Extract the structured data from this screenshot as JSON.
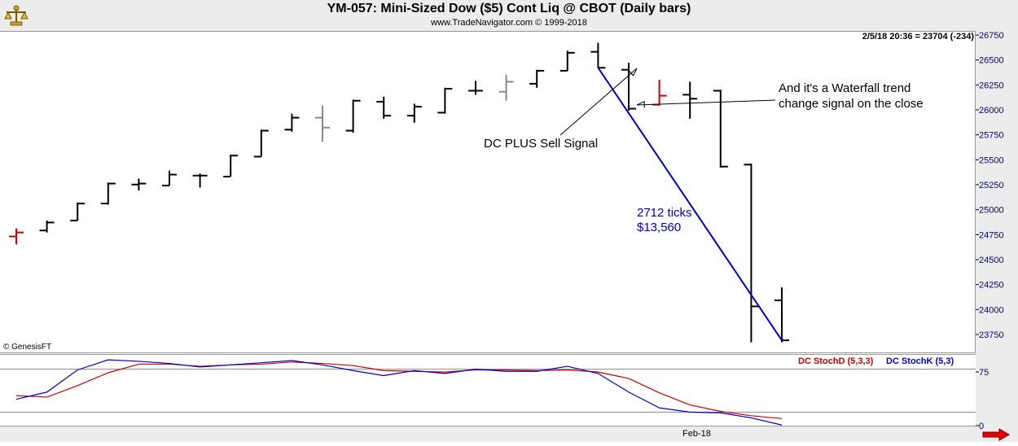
{
  "header": {
    "title": "YM-057:  Mini-Sized Dow ($5) Cont Liq @ CBOT  (Daily bars)",
    "subtitle": "www.TradeNavigator.com © 1999-2018"
  },
  "quote": "2/5/18 20:36 = 23704 (-234)",
  "copyright": "© GenesisFT",
  "annotations": {
    "sell_signal": "DC PLUS Sell Signal",
    "waterfall_1": "And it's a Waterfall trend",
    "waterfall_2": "change signal on the close",
    "ticks_1": "2712 ticks",
    "ticks_2": "$13,560"
  },
  "stoch_legend": {
    "d_label": "DC StochD (5,3,3)",
    "k_label": "DC StochK (5,3)",
    "d_color": "#cc0000",
    "k_color": "#0000cc"
  },
  "date_label": "Feb-18",
  "chart_data": [
    {
      "type": "bar",
      "subtype": "ohlc",
      "title": "YM-057:  Mini-Sized Dow ($5) Cont Liq @ CBOT  (Daily bars)",
      "ylim": [
        23600,
        26800
      ],
      "yticks": [
        23750,
        24000,
        24250,
        24500,
        24750,
        25000,
        25250,
        25500,
        25750,
        26000,
        26250,
        26500,
        26750
      ],
      "bars": [
        {
          "o": 24740,
          "h": 24820,
          "l": 24660,
          "c": 24780,
          "color": "#cc0000"
        },
        {
          "o": 24800,
          "h": 24900,
          "l": 24780,
          "c": 24880,
          "color": "#000000"
        },
        {
          "o": 24900,
          "h": 25080,
          "l": 24900,
          "c": 25070,
          "color": "#000000"
        },
        {
          "o": 25070,
          "h": 25280,
          "l": 25060,
          "c": 25270,
          "color": "#000000"
        },
        {
          "o": 25260,
          "h": 25320,
          "l": 25200,
          "c": 25270,
          "color": "#000000"
        },
        {
          "o": 25250,
          "h": 25400,
          "l": 25250,
          "c": 25360,
          "color": "#000000"
        },
        {
          "o": 25350,
          "h": 25370,
          "l": 25230,
          "c": 25350,
          "color": "#000000"
        },
        {
          "o": 25340,
          "h": 25560,
          "l": 25340,
          "c": 25550,
          "color": "#000000"
        },
        {
          "o": 25540,
          "h": 25810,
          "l": 25540,
          "c": 25800,
          "color": "#000000"
        },
        {
          "o": 25810,
          "h": 25970,
          "l": 25790,
          "c": 25930,
          "color": "#000000"
        },
        {
          "o": 25930,
          "h": 26050,
          "l": 25690,
          "c": 25830,
          "color": "#888888"
        },
        {
          "o": 25800,
          "h": 26110,
          "l": 25780,
          "c": 26100,
          "color": "#000000"
        },
        {
          "o": 26090,
          "h": 26140,
          "l": 25920,
          "c": 25950,
          "color": "#000000"
        },
        {
          "o": 25950,
          "h": 26070,
          "l": 25880,
          "c": 26040,
          "color": "#000000"
        },
        {
          "o": 25980,
          "h": 26230,
          "l": 25970,
          "c": 26220,
          "color": "#000000"
        },
        {
          "o": 26200,
          "h": 26300,
          "l": 26160,
          "c": 26200,
          "color": "#000000"
        },
        {
          "o": 26190,
          "h": 26360,
          "l": 26100,
          "c": 26290,
          "color": "#888888"
        },
        {
          "o": 26270,
          "h": 26410,
          "l": 26230,
          "c": 26400,
          "color": "#000000"
        },
        {
          "o": 26400,
          "h": 26600,
          "l": 26400,
          "c": 26580,
          "color": "#000000"
        },
        {
          "o": 26590,
          "h": 26680,
          "l": 26430,
          "c": 26430,
          "color": "#000000"
        },
        {
          "o": 26410,
          "h": 26480,
          "l": 26000,
          "c": 26020,
          "color": "#000000"
        },
        {
          "o": 26060,
          "h": 26310,
          "l": 26050,
          "c": 26150,
          "color": "#cc0000"
        },
        {
          "o": 26160,
          "h": 26290,
          "l": 25920,
          "c": 26120,
          "color": "#000000"
        },
        {
          "o": 26200,
          "h": 26210,
          "l": 25430,
          "c": 25440,
          "color": "#000000"
        },
        {
          "o": 25460,
          "h": 25470,
          "l": 23680,
          "c": 24040,
          "color": "#000000"
        },
        {
          "o": 24100,
          "h": 24230,
          "l": 23680,
          "c": 23700,
          "color": "#000000"
        }
      ],
      "trendline": {
        "from_bar": 19,
        "from_value": 26430,
        "to_bar": 25,
        "to_value": 23700
      }
    },
    {
      "type": "line",
      "title": "",
      "ylim": [
        0,
        100
      ],
      "yticks": [
        0,
        75
      ],
      "hlines": [
        20,
        80
      ],
      "series": [
        {
          "name": "DC StochD (5,3,3)",
          "color": "#cc0000",
          "values": [
            43,
            41,
            57,
            75,
            87,
            87,
            84,
            86,
            87,
            90,
            88,
            85,
            78,
            77,
            76,
            79,
            79,
            78,
            79,
            76,
            67,
            47,
            30,
            21,
            15,
            11
          ]
        },
        {
          "name": "DC StochK (5,3)",
          "color": "#0000cc",
          "values": [
            38,
            48,
            79,
            93,
            91,
            88,
            83,
            86,
            89,
            92,
            86,
            78,
            71,
            78,
            74,
            80,
            77,
            77,
            84,
            74,
            48,
            26,
            20,
            19,
            12,
            2
          ]
        }
      ]
    }
  ]
}
